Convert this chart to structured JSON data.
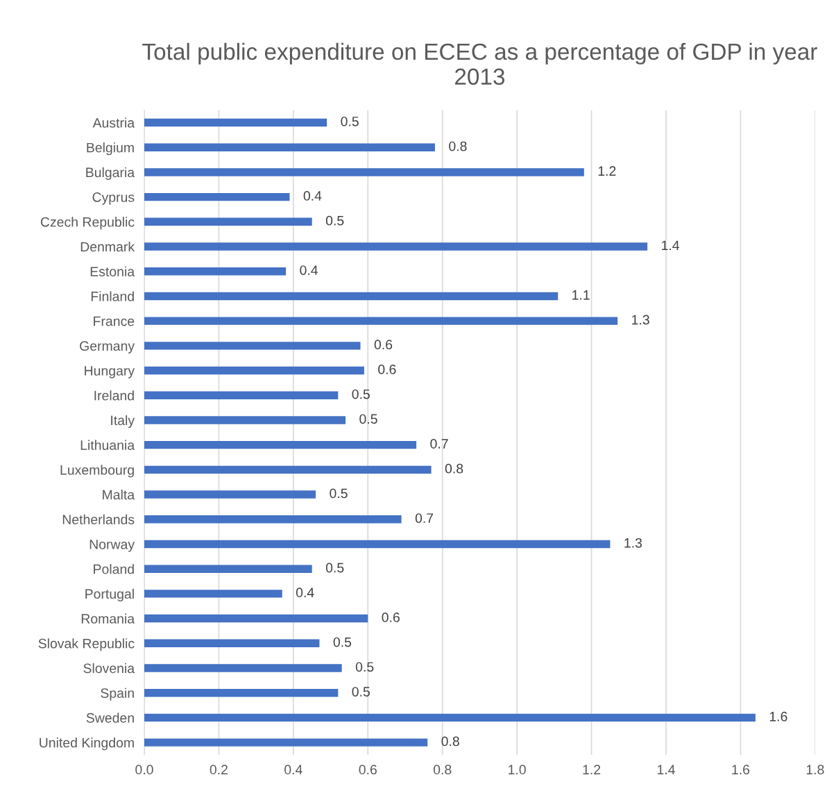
{
  "chart_data": {
    "type": "bar",
    "orientation": "horizontal",
    "title": "Total public expenditure on ECEC as a percentage of GDP in year 2013",
    "categories": [
      "Austria",
      "Belgium",
      "Bulgaria",
      "Cyprus",
      "Czech Republic",
      "Denmark",
      "Estonia",
      "Finland",
      "France",
      "Germany",
      "Hungary",
      "Ireland",
      "Italy",
      "Lithuania",
      "Luxembourg",
      "Malta",
      "Netherlands",
      "Norway",
      "Poland",
      "Portugal",
      "Romania",
      "Slovak Republic",
      "Slovenia",
      "Spain",
      "Sweden",
      "United Kingdom"
    ],
    "values": [
      0.49,
      0.78,
      1.18,
      0.39,
      0.45,
      1.35,
      0.38,
      1.11,
      1.27,
      0.58,
      0.59,
      0.52,
      0.54,
      0.73,
      0.77,
      0.46,
      0.69,
      1.25,
      0.45,
      0.37,
      0.6,
      0.47,
      0.53,
      0.52,
      1.64,
      0.76
    ],
    "value_labels": [
      "0.5",
      "0.8",
      "1.2",
      "0.4",
      "0.5",
      "1.4",
      "0.4",
      "1.1",
      "1.3",
      "0.6",
      "0.6",
      "0.5",
      "0.5",
      "0.7",
      "0.8",
      "0.5",
      "0.7",
      "1.3",
      "0.5",
      "0.4",
      "0.6",
      "0.5",
      "0.5",
      "0.5",
      "1.6",
      "0.8"
    ],
    "color": "#4472c4",
    "xlim": [
      0,
      1.8
    ],
    "xticks": [
      {
        "value": 0,
        "label": "0.0"
      },
      {
        "value": 0.2,
        "label": "0.2"
      },
      {
        "value": 0.4,
        "label": "0.4"
      },
      {
        "value": 0.6,
        "label": "0.6"
      },
      {
        "value": 0.8,
        "label": "0.8"
      },
      {
        "value": 1.0,
        "label": "1.0"
      },
      {
        "value": 1.2,
        "label": "1.2"
      },
      {
        "value": 1.4,
        "label": "1.4"
      },
      {
        "value": 1.6,
        "label": "1.6"
      },
      {
        "value": 1.8,
        "label": "1.8"
      }
    ],
    "grid": "x"
  }
}
